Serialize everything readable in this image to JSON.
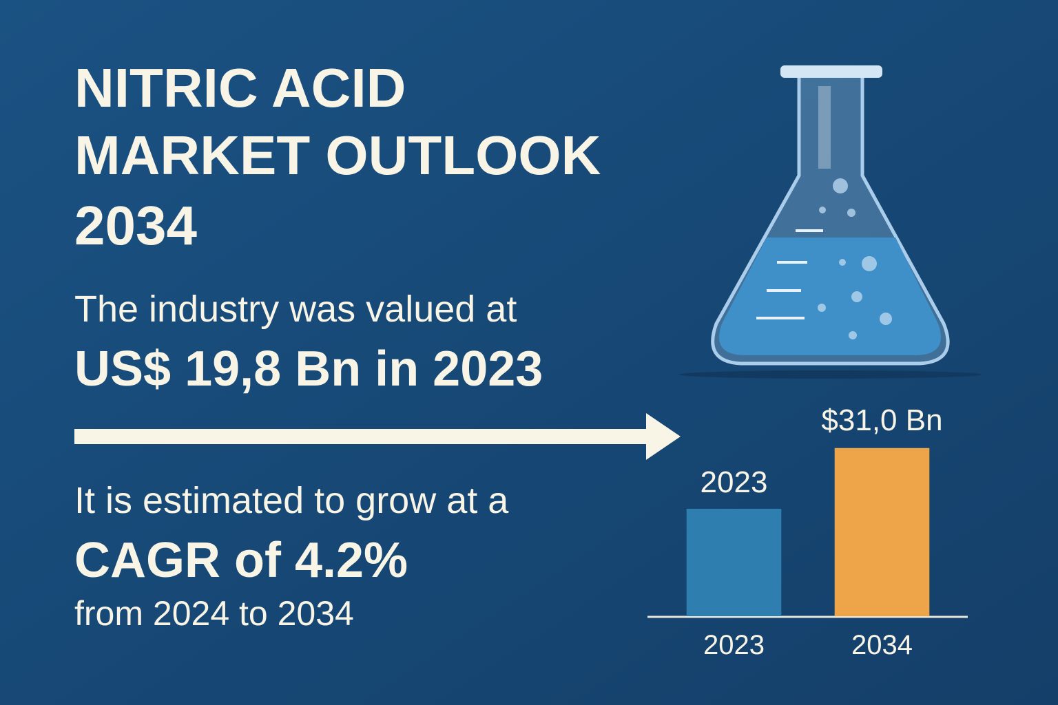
{
  "title_lines": [
    "NITRIC ACID",
    "MARKET OUTLOOK",
    "2034"
  ],
  "text": {
    "valued_intro": "The industry was valued at",
    "valued_amount": "US$ 19,8 Bn in 2023",
    "grow_intro": "It is estimated to grow at a",
    "cagr": "CAGR of 4.2%",
    "period": "from 2024 to 2034"
  },
  "chart_data": {
    "type": "bar",
    "categories": [
      "2023",
      "2034"
    ],
    "values": [
      19.8,
      31.0
    ],
    "value_labels": [
      null,
      "$31,0 Bn"
    ],
    "annotation": "2023",
    "colors": [
      "#2e7fb0",
      "#eea54a"
    ],
    "ylim": [
      0,
      33
    ]
  }
}
